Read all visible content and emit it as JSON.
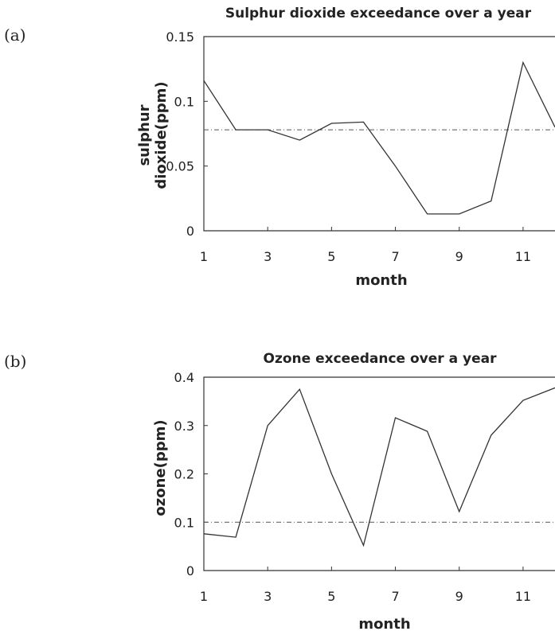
{
  "chart_data": [
    {
      "type": "line",
      "panel_label": "(a)",
      "title": "Sulphur dioxide exceedance over a year",
      "xlabel": "month",
      "ylabel_lines": [
        "sulphur",
        "dioxide(ppm)"
      ],
      "xlim": [
        1,
        12
      ],
      "ylim": [
        0,
        0.15
      ],
      "xticks": [
        1,
        3,
        5,
        7,
        9,
        11
      ],
      "yticks": [
        0,
        0.05,
        0.1,
        0.15
      ],
      "ytick_labels": [
        "0",
        "0.05",
        "0.1",
        "0.15"
      ],
      "grid": false,
      "series": [
        {
          "x": [
            1,
            2,
            3,
            4,
            5,
            6,
            7,
            8,
            9,
            10,
            11,
            12
          ],
          "values": [
            0.116,
            0.078,
            0.078,
            0.07,
            0.083,
            0.084,
            0.05,
            0.013,
            0.013,
            0.023,
            0.13,
            0.08
          ]
        }
      ],
      "threshold": 0.078
    },
    {
      "type": "line",
      "panel_label": "(b)",
      "title": "Ozone exceedance over a year",
      "xlabel": "month",
      "ylabel_lines": [
        "ozone(ppm)"
      ],
      "xlim": [
        1,
        12
      ],
      "ylim": [
        0,
        0.4
      ],
      "xticks": [
        1,
        3,
        5,
        7,
        9,
        11
      ],
      "yticks": [
        0,
        0.1,
        0.2,
        0.3,
        0.4
      ],
      "ytick_labels": [
        "0",
        "0.1",
        "0.2",
        "0.3",
        "0.4"
      ],
      "grid": false,
      "series": [
        {
          "x": [
            1,
            2,
            3,
            4,
            5,
            6,
            7,
            8,
            9,
            10,
            11,
            12
          ],
          "values": [
            0.076,
            0.069,
            0.3,
            0.375,
            0.2,
            0.052,
            0.316,
            0.288,
            0.122,
            0.28,
            0.352,
            0.378
          ]
        }
      ],
      "threshold": 0.1
    }
  ]
}
